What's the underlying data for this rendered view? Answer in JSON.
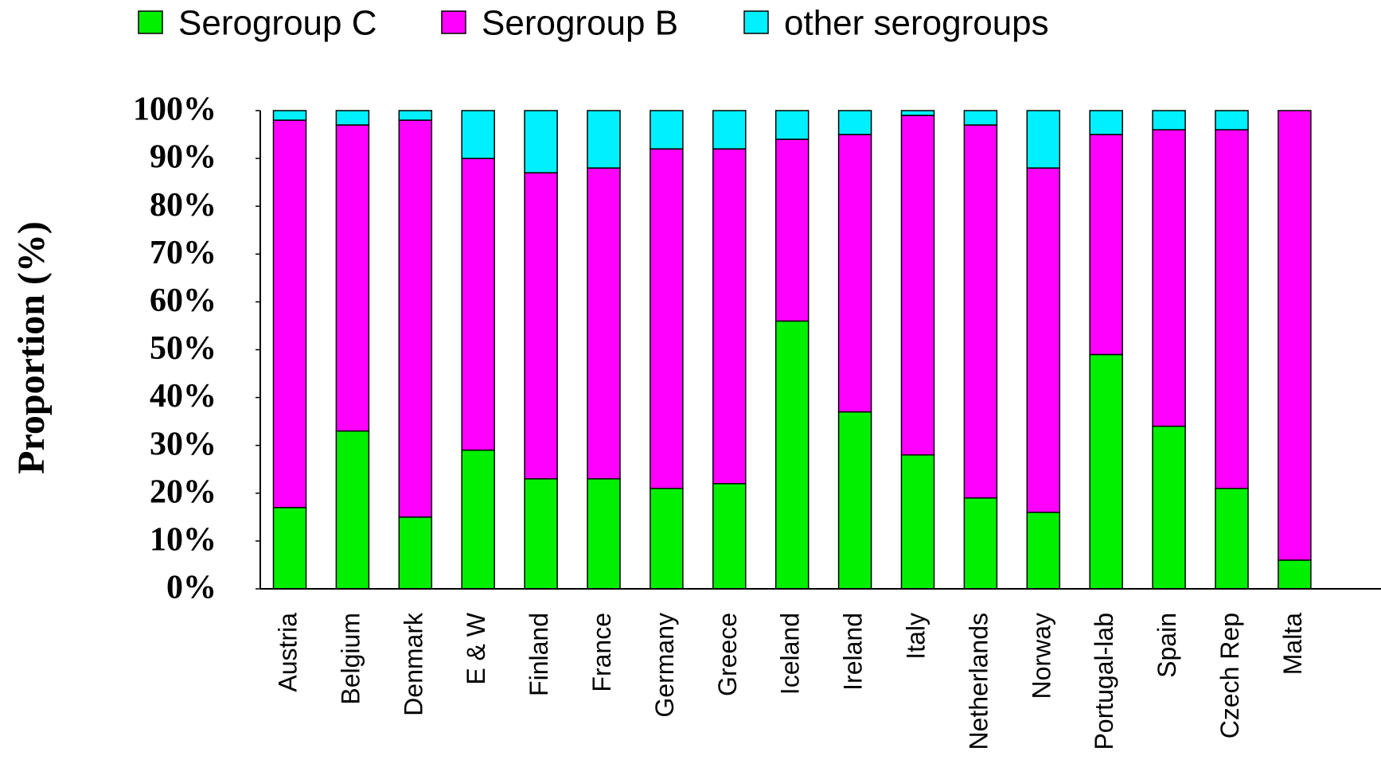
{
  "chart_data": {
    "type": "stacked_bar",
    "y_label": "Proportion (%)",
    "categories": [
      "Austria",
      "Belgium",
      "Denmark",
      "E & W",
      "Finland",
      "France",
      "Germany",
      "Greece",
      "Iceland",
      "Ireland",
      "Italy",
      "Netherlands",
      "Norway",
      "Portugal-lab",
      "Spain",
      "Czech Rep",
      "Malta"
    ],
    "series": [
      {
        "name": "Serogroup C",
        "color": "#00f000",
        "values": [
          17,
          33,
          15,
          29,
          23,
          23,
          21,
          22,
          56,
          37,
          28,
          19,
          16,
          49,
          34,
          21,
          6
        ]
      },
      {
        "name": "Serogroup B",
        "color": "#ff00ff",
        "values": [
          81,
          64,
          83,
          61,
          64,
          65,
          71,
          70,
          38,
          58,
          71,
          78,
          72,
          46,
          62,
          75,
          94
        ]
      },
      {
        "name": "other serogroups",
        "color": "#00f0ff",
        "values": [
          2,
          3,
          2,
          10,
          13,
          12,
          8,
          8,
          6,
          5,
          1,
          3,
          12,
          5,
          4,
          4,
          0
        ]
      }
    ],
    "ylim": [
      0,
      100
    ],
    "yticks": [
      {
        "value": 0,
        "label": "0%"
      },
      {
        "value": 10,
        "label": "10%"
      },
      {
        "value": 20,
        "label": "20%"
      },
      {
        "value": 30,
        "label": "30%"
      },
      {
        "value": 40,
        "label": "40%"
      },
      {
        "value": 50,
        "label": "50%"
      },
      {
        "value": 60,
        "label": "60%"
      },
      {
        "value": 70,
        "label": "70%"
      },
      {
        "value": 80,
        "label": "80%"
      },
      {
        "value": 90,
        "label": "90%"
      },
      {
        "value": 100,
        "label": "100%"
      }
    ],
    "legend": "top"
  }
}
